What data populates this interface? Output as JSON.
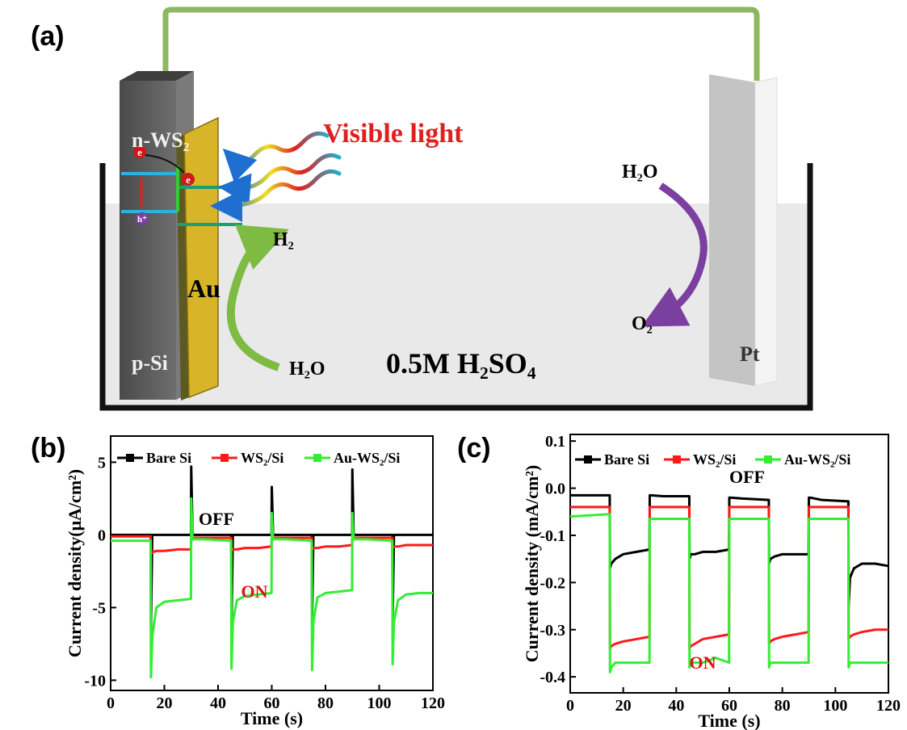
{
  "diagram": {
    "panel_label": "(a)",
    "n_ws2": "n-WS₂",
    "light": "Visible light",
    "h2": "H₂",
    "au": "Au",
    "h2o_left": "H₂O",
    "electrolyte": "0.5M H₂SO₄",
    "h2o_right": "H₂O",
    "o2": "O₂",
    "p_si": "p-Si",
    "pt": "Pt",
    "electron_1": "e",
    "electron_2": "e",
    "hole": "h⁺"
  },
  "chart_data": [
    {
      "type": "line",
      "label": "(b)",
      "x_label": "Time (s)",
      "y_label": "Current density(μA/cm²)",
      "x": [
        0,
        14.9,
        15,
        15.5,
        17,
        20,
        25,
        29.9,
        30,
        30.5,
        35,
        44.9,
        45,
        45.5,
        47,
        50,
        55,
        59.9,
        60,
        60.5,
        65,
        74.9,
        75,
        75.5,
        77,
        80,
        85,
        89.9,
        90,
        90.5,
        95,
        104.9,
        105,
        105.5,
        107,
        110,
        115,
        120
      ],
      "series": [
        {
          "name": "Bare Si",
          "color": "#000000",
          "values": [
            0,
            0,
            -6.5,
            0,
            0,
            0,
            0,
            0,
            4.7,
            0,
            0,
            0,
            -6.2,
            0,
            0,
            0,
            0,
            0,
            3.3,
            0,
            0,
            0,
            -6.1,
            0,
            0,
            0,
            0,
            0,
            4.5,
            0,
            0,
            0,
            -6,
            0,
            0,
            0,
            0,
            0
          ]
        },
        {
          "name": "WS₂/Si",
          "color": "#ff1a1a",
          "values": [
            -0.1,
            -0.1,
            -1.3,
            -1.2,
            -1.1,
            -1.1,
            -1,
            -1,
            -0.1,
            -0.2,
            -0.2,
            -0.2,
            -1.1,
            -1,
            -1,
            -0.9,
            -0.9,
            -0.8,
            -0.2,
            -0.2,
            -0.2,
            -0.2,
            -1,
            -0.9,
            -0.9,
            -0.8,
            -0.8,
            -0.7,
            -0.2,
            -0.2,
            -0.2,
            -0.2,
            -0.9,
            -0.8,
            -0.8,
            -0.7,
            -0.7,
            -0.7
          ]
        },
        {
          "name": "Au-WS₂/Si",
          "color": "#33ee33",
          "values": [
            -0.4,
            -0.4,
            -9.8,
            -7,
            -5,
            -4.6,
            -4.5,
            -4.4,
            2.5,
            -0.3,
            -0.3,
            -0.4,
            -9.2,
            -6,
            -4.5,
            -4.2,
            -4.1,
            -4,
            1.5,
            -0.3,
            -0.3,
            -0.4,
            -9.3,
            -6,
            -4.3,
            -4,
            -3.9,
            -3.8,
            1.5,
            -0.3,
            -0.3,
            -0.4,
            -8.9,
            -6,
            -4.5,
            -4.1,
            -4,
            -4
          ]
        }
      ],
      "xlim": [
        0,
        120
      ],
      "xticks": [
        0,
        20,
        40,
        60,
        80,
        100,
        120
      ],
      "ylim": [
        -10.7,
        6.8
      ],
      "yticks": [
        -10,
        -5,
        0,
        5
      ],
      "annotations": [
        {
          "text": "OFF",
          "color": "#000000"
        },
        {
          "text": "ON",
          "color": "#e01010"
        }
      ]
    },
    {
      "type": "line",
      "label": "(c)",
      "x_label": "Time (s)",
      "y_label": "Current density (mA/cm²)",
      "x": [
        0,
        14.9,
        15,
        15.5,
        17,
        20,
        25,
        29.9,
        30,
        30.5,
        35,
        44.9,
        45,
        45.5,
        47,
        50,
        55,
        59.9,
        60,
        60.5,
        65,
        74.9,
        75,
        75.5,
        77,
        80,
        85,
        89.9,
        90,
        90.5,
        95,
        104.9,
        105,
        105.5,
        107,
        110,
        115,
        120
      ],
      "series": [
        {
          "name": "Bare Si",
          "color": "#000000",
          "values": [
            -0.015,
            -0.015,
            -0.17,
            -0.16,
            -0.15,
            -0.14,
            -0.135,
            -0.13,
            -0.015,
            -0.015,
            -0.017,
            -0.017,
            -0.15,
            -0.14,
            -0.14,
            -0.135,
            -0.135,
            -0.13,
            -0.02,
            -0.02,
            -0.022,
            -0.025,
            -0.16,
            -0.15,
            -0.145,
            -0.14,
            -0.14,
            -0.14,
            -0.02,
            -0.02,
            -0.025,
            -0.028,
            -0.25,
            -0.19,
            -0.17,
            -0.16,
            -0.16,
            -0.165
          ]
        },
        {
          "name": "WS₂/Si",
          "color": "#ff1a1a",
          "values": [
            -0.04,
            -0.04,
            -0.34,
            -0.335,
            -0.33,
            -0.325,
            -0.32,
            -0.315,
            -0.04,
            -0.04,
            -0.04,
            -0.04,
            -0.34,
            -0.335,
            -0.33,
            -0.32,
            -0.315,
            -0.31,
            -0.04,
            -0.04,
            -0.04,
            -0.04,
            -0.33,
            -0.325,
            -0.32,
            -0.315,
            -0.31,
            -0.305,
            -0.04,
            -0.04,
            -0.04,
            -0.04,
            -0.32,
            -0.315,
            -0.31,
            -0.305,
            -0.3,
            -0.3
          ]
        },
        {
          "name": "Au-WS₂/Si",
          "color": "#33ee33",
          "values": [
            -0.06,
            -0.055,
            -0.39,
            -0.38,
            -0.37,
            -0.37,
            -0.37,
            -0.37,
            -0.065,
            -0.065,
            -0.065,
            -0.065,
            -0.38,
            -0.37,
            -0.37,
            -0.37,
            -0.36,
            -0.37,
            -0.065,
            -0.065,
            -0.065,
            -0.065,
            -0.38,
            -0.37,
            -0.37,
            -0.37,
            -0.37,
            -0.37,
            -0.065,
            -0.065,
            -0.065,
            -0.065,
            -0.38,
            -0.37,
            -0.37,
            -0.37,
            -0.37,
            -0.37
          ]
        }
      ],
      "xlim": [
        0,
        120
      ],
      "xticks": [
        0,
        20,
        40,
        60,
        80,
        100,
        120
      ],
      "ylim": [
        -0.434,
        0.114
      ],
      "yticks": [
        0.1,
        {
          "value": 0,
          "label": "0.0"
        },
        -0.1,
        -0.2,
        -0.3,
        -0.4
      ],
      "annotations": [
        {
          "text": "OFF",
          "color": "#000000"
        },
        {
          "text": "ON",
          "color": "#e01010"
        }
      ]
    }
  ]
}
